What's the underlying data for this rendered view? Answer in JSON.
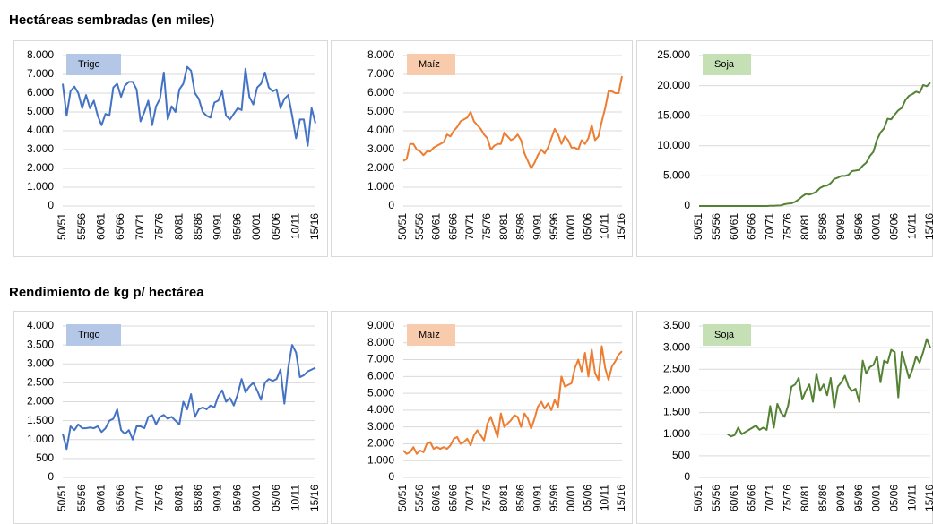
{
  "headings": [
    "Hectáreas sembradas (en miles)",
    "Rendimiento de kg p/ hectárea"
  ],
  "chart_data": [
    {
      "type": "line",
      "categories": [
        "50/51",
        null,
        null,
        null,
        null,
        "55/56",
        null,
        null,
        null,
        null,
        "60/61",
        null,
        null,
        null,
        null,
        "65/66",
        null,
        null,
        null,
        null,
        "70/71",
        null,
        null,
        null,
        null,
        "75/76",
        null,
        null,
        null,
        null,
        "80/81",
        null,
        null,
        null,
        null,
        "85/86",
        null,
        null,
        null,
        null,
        "90/91",
        null,
        null,
        null,
        null,
        "95/96",
        null,
        null,
        null,
        null,
        "00/01",
        null,
        null,
        null,
        null,
        "05/06",
        null,
        null,
        null,
        null,
        "10/11",
        null,
        null,
        null,
        null,
        "15/16"
      ],
      "series": [
        {
          "name": "Trigo",
          "color": "#4472c4",
          "values": [
            6500,
            4800,
            6100,
            6350,
            6000,
            5200,
            5900,
            5200,
            5600,
            4800,
            4300,
            4900,
            4800,
            6300,
            6500,
            5800,
            6400,
            6600,
            6600,
            6200,
            4500,
            5000,
            5600,
            4300,
            5300,
            5700,
            7100,
            4600,
            5300,
            5000,
            6200,
            6500,
            7400,
            7200,
            6000,
            5700,
            5000,
            4800,
            4700,
            5500,
            5600,
            6100,
            4800,
            4600,
            4900,
            5200,
            5100,
            7300,
            5800,
            5400,
            6300,
            6500,
            7100,
            6300,
            6100,
            6200,
            5200,
            5700,
            5900,
            4800,
            3600,
            4600,
            4600,
            3200,
            5200,
            4400
          ]
        }
      ],
      "legend_color": "#b4c7e7",
      "grid": true,
      "ylim": [
        0,
        8000
      ],
      "yticks": [
        0,
        {
          "value": 1000,
          "label": "1.000"
        },
        {
          "value": 2000,
          "label": "2.000"
        },
        {
          "value": 3000,
          "label": "3.000"
        },
        {
          "value": 4000,
          "label": "4.000"
        },
        {
          "value": 5000,
          "label": "5.000"
        },
        {
          "value": 6000,
          "label": "6.000"
        },
        {
          "value": 7000,
          "label": "7.000"
        },
        {
          "value": 8000,
          "label": "8.000"
        }
      ]
    },
    {
      "type": "line",
      "categories": [
        "50/51",
        null,
        null,
        null,
        null,
        "55/56",
        null,
        null,
        null,
        null,
        "60/61",
        null,
        null,
        null,
        null,
        "65/66",
        null,
        null,
        null,
        null,
        "70/71",
        null,
        null,
        null,
        null,
        "75/76",
        null,
        null,
        null,
        null,
        "80/81",
        null,
        null,
        null,
        null,
        "85/86",
        null,
        null,
        null,
        null,
        "90/91",
        null,
        null,
        null,
        null,
        "95/96",
        null,
        null,
        null,
        null,
        "00/01",
        null,
        null,
        null,
        null,
        "05/06",
        null,
        null,
        null,
        null,
        "10/11",
        null,
        null,
        null,
        null,
        "15/16"
      ],
      "series": [
        {
          "name": "Maíz",
          "color": "#ed7d31",
          "values": [
            2400,
            2500,
            3300,
            3300,
            3000,
            2900,
            2700,
            2900,
            2900,
            3100,
            3200,
            3300,
            3400,
            3800,
            3700,
            4000,
            4200,
            4500,
            4600,
            4700,
            5000,
            4500,
            4300,
            4100,
            3800,
            3600,
            3000,
            3200,
            3300,
            3300,
            3900,
            3700,
            3500,
            3600,
            3800,
            3500,
            2800,
            2400,
            2000,
            2300,
            2700,
            3000,
            2800,
            3100,
            3600,
            4100,
            3800,
            3300,
            3700,
            3500,
            3100,
            3100,
            3000,
            3500,
            3300,
            3600,
            4300,
            3500,
            3700,
            4500,
            5200,
            6100,
            6100,
            6000,
            6000,
            6900
          ]
        }
      ],
      "legend_color": "#f8cbad",
      "grid": true,
      "ylim": [
        0,
        8000
      ],
      "yticks": [
        0,
        {
          "value": 1000,
          "label": "1.000"
        },
        {
          "value": 2000,
          "label": "2.000"
        },
        {
          "value": 3000,
          "label": "3.000"
        },
        {
          "value": 4000,
          "label": "4.000"
        },
        {
          "value": 5000,
          "label": "5.000"
        },
        {
          "value": 6000,
          "label": "6.000"
        },
        {
          "value": 7000,
          "label": "7.000"
        },
        {
          "value": 8000,
          "label": "8.000"
        }
      ]
    },
    {
      "type": "line",
      "categories": [
        "50/51",
        null,
        null,
        null,
        null,
        "55/56",
        null,
        null,
        null,
        null,
        "60/61",
        null,
        null,
        null,
        null,
        "65/66",
        null,
        null,
        null,
        null,
        "70/71",
        null,
        null,
        null,
        null,
        "75/76",
        null,
        null,
        null,
        null,
        "80/81",
        null,
        null,
        null,
        null,
        "85/86",
        null,
        null,
        null,
        null,
        "90/91",
        null,
        null,
        null,
        null,
        "95/96",
        null,
        null,
        null,
        null,
        "00/01",
        null,
        null,
        null,
        null,
        "05/06",
        null,
        null,
        null,
        null,
        "10/11",
        null,
        null,
        null,
        null,
        "15/16"
      ],
      "series": [
        {
          "name": "Soja",
          "color": "#548235",
          "values": [
            0,
            0,
            0,
            0,
            0,
            0,
            0,
            0,
            0,
            0,
            0,
            0,
            0,
            0,
            0,
            0,
            0,
            0,
            0,
            0,
            30,
            40,
            80,
            100,
            300,
            400,
            450,
            700,
            1100,
            1600,
            2000,
            1900,
            2100,
            2400,
            3000,
            3300,
            3400,
            3800,
            4500,
            4700,
            5000,
            5000,
            5200,
            5800,
            5900,
            6000,
            6700,
            7200,
            8300,
            9000,
            11000,
            12200,
            12900,
            14500,
            14400,
            15200,
            15900,
            16300,
            17600,
            18300,
            18600,
            19000,
            18800,
            20100,
            19900,
            20500
          ]
        }
      ],
      "legend_color": "#c5e0b4",
      "grid": true,
      "ylim": [
        0,
        25000
      ],
      "yticks": [
        0,
        {
          "value": 5000,
          "label": "5.000"
        },
        {
          "value": 10000,
          "label": "10.000"
        },
        {
          "value": 15000,
          "label": "15.000"
        },
        {
          "value": 20000,
          "label": "20.000"
        },
        {
          "value": 25000,
          "label": "25.000"
        }
      ]
    },
    {
      "type": "line",
      "categories": [
        "50/51",
        null,
        null,
        null,
        null,
        "55/56",
        null,
        null,
        null,
        null,
        "60/61",
        null,
        null,
        null,
        null,
        "65/66",
        null,
        null,
        null,
        null,
        "70/71",
        null,
        null,
        null,
        null,
        "75/76",
        null,
        null,
        null,
        null,
        "80/81",
        null,
        null,
        null,
        null,
        "85/86",
        null,
        null,
        null,
        null,
        "90/91",
        null,
        null,
        null,
        null,
        "95/96",
        null,
        null,
        null,
        null,
        "00/01",
        null,
        null,
        null,
        null,
        "05/06",
        null,
        null,
        null,
        null,
        "10/11",
        null,
        null,
        null,
        null,
        "15/16"
      ],
      "series": [
        {
          "name": "Trigo",
          "color": "#4472c4",
          "values": [
            1150,
            750,
            1350,
            1250,
            1400,
            1300,
            1300,
            1320,
            1300,
            1350,
            1200,
            1300,
            1500,
            1550,
            1800,
            1250,
            1150,
            1250,
            1000,
            1350,
            1350,
            1300,
            1600,
            1650,
            1400,
            1600,
            1650,
            1550,
            1600,
            1500,
            1400,
            2000,
            1800,
            2200,
            1600,
            1800,
            1850,
            1800,
            1900,
            1850,
            2150,
            2300,
            2000,
            2100,
            1900,
            2200,
            2600,
            2250,
            2400,
            2500,
            2300,
            2050,
            2500,
            2600,
            2550,
            2600,
            2850,
            1950,
            2900,
            3500,
            3300,
            2650,
            2700,
            2800,
            2850,
            2900
          ]
        }
      ],
      "legend_color": "#b4c7e7",
      "grid": true,
      "ylim": [
        0,
        4000
      ],
      "yticks": [
        0,
        500,
        {
          "value": 1000,
          "label": "1.000"
        },
        {
          "value": 1500,
          "label": "1.500"
        },
        {
          "value": 2000,
          "label": "2.000"
        },
        {
          "value": 2500,
          "label": "2.500"
        },
        {
          "value": 3000,
          "label": "3.000"
        },
        {
          "value": 3500,
          "label": "3.500"
        },
        {
          "value": 4000,
          "label": "4.000"
        }
      ]
    },
    {
      "type": "line",
      "categories": [
        "50/51",
        null,
        null,
        null,
        null,
        "55/56",
        null,
        null,
        null,
        null,
        "60/61",
        null,
        null,
        null,
        null,
        "65/66",
        null,
        null,
        null,
        null,
        "70/71",
        null,
        null,
        null,
        null,
        "75/76",
        null,
        null,
        null,
        null,
        "80/81",
        null,
        null,
        null,
        null,
        "85/86",
        null,
        null,
        null,
        null,
        "90/91",
        null,
        null,
        null,
        null,
        "95/96",
        null,
        null,
        null,
        null,
        "00/01",
        null,
        null,
        null,
        null,
        "05/06",
        null,
        null,
        null,
        null,
        "10/11",
        null,
        null,
        null,
        null,
        "15/16"
      ],
      "series": [
        {
          "name": "Maíz",
          "color": "#ed7d31",
          "values": [
            1600,
            1400,
            1500,
            1800,
            1400,
            1600,
            1500,
            2000,
            2100,
            1700,
            1800,
            1700,
            1800,
            1700,
            1900,
            2300,
            2400,
            2000,
            2100,
            2300,
            1900,
            2500,
            2800,
            2500,
            2200,
            3200,
            3600,
            3000,
            2400,
            3800,
            3000,
            3200,
            3400,
            3700,
            3600,
            3000,
            3800,
            3500,
            2900,
            3500,
            4200,
            4500,
            4100,
            4400,
            4000,
            4600,
            4200,
            6000,
            5400,
            5500,
            5600,
            6500,
            7000,
            6300,
            7400,
            6000,
            7600,
            6200,
            5800,
            7800,
            6500,
            5800,
            6600,
            6900,
            7300,
            7500
          ]
        }
      ],
      "legend_color": "#f8cbad",
      "grid": true,
      "ylim": [
        0,
        9000
      ],
      "yticks": [
        0,
        {
          "value": 1000,
          "label": "1.000"
        },
        {
          "value": 2000,
          "label": "2.000"
        },
        {
          "value": 3000,
          "label": "3.000"
        },
        {
          "value": 4000,
          "label": "4.000"
        },
        {
          "value": 5000,
          "label": "5.000"
        },
        {
          "value": 6000,
          "label": "6.000"
        },
        {
          "value": 7000,
          "label": "7.000"
        },
        {
          "value": 8000,
          "label": "8.000"
        },
        {
          "value": 9000,
          "label": "9.000"
        }
      ]
    },
    {
      "type": "line",
      "categories": [
        "50/51",
        null,
        null,
        null,
        null,
        "55/56",
        null,
        null,
        null,
        null,
        "60/61",
        null,
        null,
        null,
        null,
        "65/66",
        null,
        null,
        null,
        null,
        "70/71",
        null,
        null,
        null,
        null,
        "75/76",
        null,
        null,
        null,
        null,
        "80/81",
        null,
        null,
        null,
        null,
        "85/86",
        null,
        null,
        null,
        null,
        "90/91",
        null,
        null,
        null,
        null,
        "95/96",
        null,
        null,
        null,
        null,
        "00/01",
        null,
        null,
        null,
        null,
        "05/06",
        null,
        null,
        null,
        null,
        "10/11",
        null,
        null,
        null,
        null,
        "15/16"
      ],
      "series": [
        {
          "name": "Soja",
          "color": "#548235",
          "values": [
            null,
            null,
            null,
            null,
            null,
            null,
            null,
            null,
            1000,
            950,
            980,
            1150,
            1000,
            1050,
            1100,
            1150,
            1200,
            1100,
            1150,
            1100,
            1650,
            1150,
            1700,
            1500,
            1400,
            1650,
            2100,
            2150,
            2300,
            1800,
            2000,
            2150,
            1750,
            2400,
            2000,
            2150,
            1900,
            2300,
            1600,
            2100,
            2200,
            2350,
            2100,
            2000,
            2050,
            1750,
            2700,
            2400,
            2550,
            2600,
            2800,
            2200,
            2700,
            2650,
            2950,
            2900,
            1850,
            2900,
            2600,
            2300,
            2500,
            2800,
            2650,
            2900,
            3200,
            3000
          ]
        }
      ],
      "legend_color": "#c5e0b4",
      "grid": true,
      "ylim": [
        0,
        3500
      ],
      "yticks": [
        0,
        500,
        {
          "value": 1000,
          "label": "1.000"
        },
        {
          "value": 1500,
          "label": "1.500"
        },
        {
          "value": 2000,
          "label": "2.000"
        },
        {
          "value": 2500,
          "label": "2.500"
        },
        {
          "value": 3000,
          "label": "3.000"
        },
        {
          "value": 3500,
          "label": "3.500"
        }
      ]
    }
  ]
}
